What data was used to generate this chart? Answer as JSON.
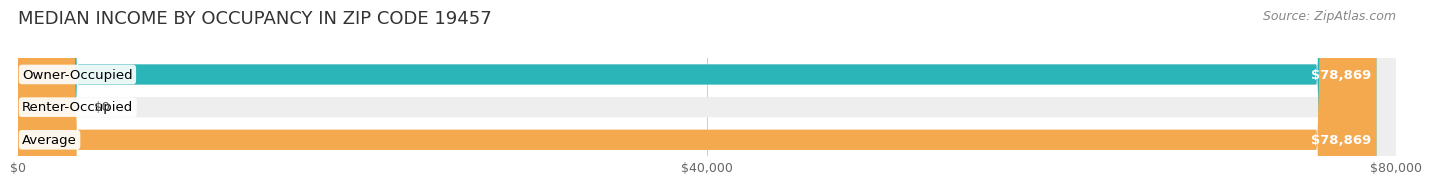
{
  "title": "MEDIAN INCOME BY OCCUPANCY IN ZIP CODE 19457",
  "source": "Source: ZipAtlas.com",
  "categories": [
    "Owner-Occupied",
    "Renter-Occupied",
    "Average"
  ],
  "values": [
    78869,
    0,
    78869
  ],
  "max_value": 80000,
  "x_ticks": [
    0,
    40000,
    80000
  ],
  "x_tick_labels": [
    "$0",
    "$40,000",
    "$80,000"
  ],
  "bar_colors": [
    "#2bb5b8",
    "#b8a0c8",
    "#f5a94e"
  ],
  "bar_bg_color": "#eeeeee",
  "value_labels": [
    "$78,869",
    "$0",
    "$78,869"
  ],
  "bar_height": 0.62,
  "background_color": "#ffffff",
  "title_fontsize": 13,
  "source_fontsize": 9,
  "label_fontsize": 9.5,
  "value_fontsize": 9.5,
  "tick_fontsize": 9
}
